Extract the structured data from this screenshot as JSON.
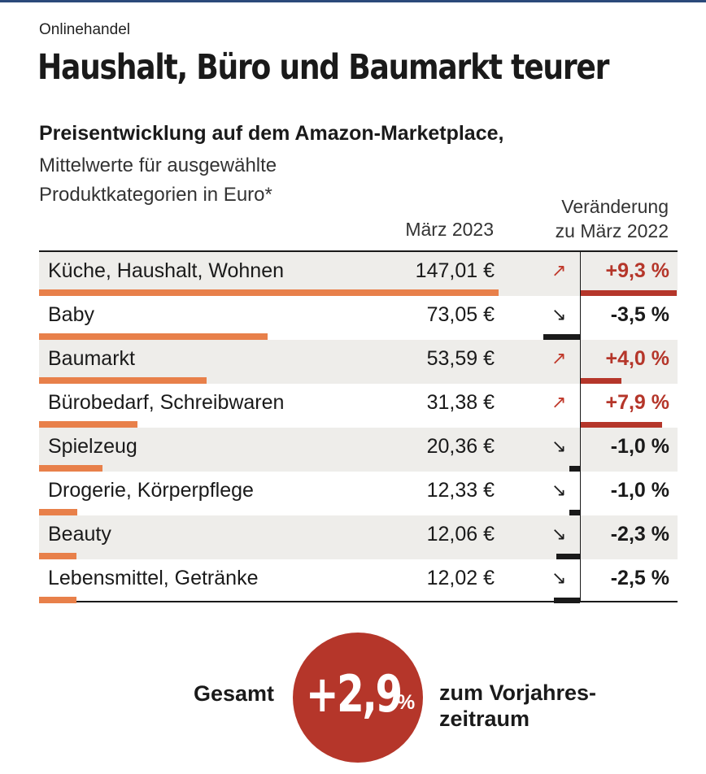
{
  "kicker": "Onlinehandel",
  "title": "Haushalt, Büro und Baumarkt teurer",
  "subtitle": "Preisentwicklung auf dem Amazon-Marketplace,",
  "description": [
    "Mittelwerte für ausgewählte",
    "Produktkategorien in Euro*"
  ],
  "columns": {
    "price": "März 2023",
    "change": [
      "Veränderung",
      "zu März 2022"
    ]
  },
  "colors": {
    "accent": "#b5362a",
    "price_bar": "#e8804a",
    "negative": "#1a1a1a",
    "row_shade": "#eeedea"
  },
  "icons": {
    "up": "↗",
    "down": "↘"
  },
  "chart_data": {
    "type": "table",
    "categories": [
      "Küche, Haushalt, Wohnen",
      "Baby",
      "Baumarkt",
      "Bürobedarf, Schreibwaren",
      "Spielzeug",
      "Drogerie, Körperpflege",
      "Beauty",
      "Lebensmittel, Getränke"
    ],
    "series": [
      {
        "name": "März 2023",
        "values": [
          147.01,
          73.05,
          53.59,
          31.38,
          20.36,
          12.33,
          12.06,
          12.02
        ]
      },
      {
        "name": "Veränderung zu März 2022",
        "values": [
          9.3,
          -3.5,
          4.0,
          7.9,
          -1.0,
          -1.0,
          -2.3,
          -2.5
        ]
      }
    ],
    "rows": [
      {
        "label": "Küche, Haushalt, Wohnen",
        "price": 147.01,
        "price_text": "147,01 €",
        "change": 9.3,
        "change_text": "+9,3 %"
      },
      {
        "label": "Baby",
        "price": 73.05,
        "price_text": "73,05 €",
        "change": -3.5,
        "change_text": "-3,5 %"
      },
      {
        "label": "Baumarkt",
        "price": 53.59,
        "price_text": "53,59 €",
        "change": 4.0,
        "change_text": "+4,0 %"
      },
      {
        "label": "Bürobedarf, Schreibwaren",
        "price": 31.38,
        "price_text": "31,38 €",
        "change": 7.9,
        "change_text": "+7,9 %"
      },
      {
        "label": "Spielzeug",
        "price": 20.36,
        "price_text": "20,36 €",
        "change": -1.0,
        "change_text": "-1,0 %"
      },
      {
        "label": "Drogerie, Körperpflege",
        "price": 12.33,
        "price_text": "12,33 €",
        "change": -1.0,
        "change_text": "-1,0 %"
      },
      {
        "label": "Beauty",
        "price": 12.06,
        "price_text": "12,06 €",
        "change": -2.3,
        "change_text": "-2,3 %"
      },
      {
        "label": "Lebensmittel, Getränke",
        "price": 12.02,
        "price_text": "12,02 €",
        "change": -2.5,
        "change_text": "-2,5 %"
      }
    ]
  },
  "total": {
    "label": "Gesamt",
    "value": "+2,9",
    "unit": "%",
    "text": [
      "zum Vorjahres-",
      "zeitraum"
    ]
  }
}
